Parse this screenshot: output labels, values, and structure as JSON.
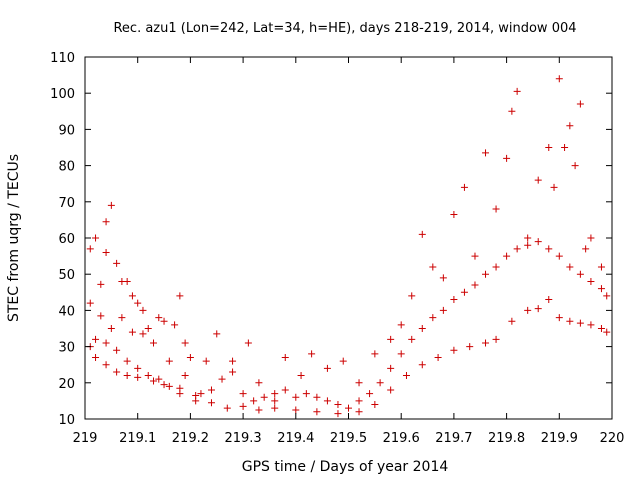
{
  "chart_data": {
    "type": "scatter",
    "title": "Rec. azu1 (Lon=242, Lat=34, h=HE), days 218-219, 2014, window 004",
    "xlabel": "GPS time / Days of year 2014",
    "ylabel": "STEC from uqrg / TECUs",
    "xlim": [
      219,
      220
    ],
    "ylim": [
      10,
      110
    ],
    "x_ticks": [
      "219",
      "219.1",
      "219.2",
      "219.3",
      "219.4",
      "219.5",
      "219.6",
      "219.7",
      "219.8",
      "219.9",
      "220"
    ],
    "y_ticks": [
      "10",
      "20",
      "30",
      "40",
      "50",
      "60",
      "70",
      "80",
      "90",
      "100",
      "110"
    ],
    "grid": false,
    "legend": "none",
    "marker": "+",
    "color": "#cc0000",
    "series": [
      {
        "values": [
          [
            219.01,
            57.0
          ],
          [
            219.03,
            47.2
          ],
          [
            219.04,
            56.0
          ],
          [
            219.06,
            53.0
          ],
          [
            219.08,
            48.0
          ],
          [
            219.1,
            42.0
          ],
          [
            219.12,
            35.0
          ],
          [
            219.15,
            37.0
          ],
          [
            219.18,
            44.0
          ],
          [
            219.2,
            27.0
          ],
          [
            219.01,
            42.0
          ],
          [
            219.03,
            38.5
          ],
          [
            219.05,
            35.0
          ],
          [
            219.07,
            38.0
          ],
          [
            219.09,
            34.0
          ],
          [
            219.11,
            33.5
          ],
          [
            219.13,
            31.0
          ],
          [
            219.16,
            26.0
          ],
          [
            219.19,
            22.0
          ],
          [
            219.22,
            17.0
          ],
          [
            219.01,
            30.0
          ],
          [
            219.02,
            27.0
          ],
          [
            219.04,
            25.0
          ],
          [
            219.06,
            23.0
          ],
          [
            219.08,
            22.0
          ],
          [
            219.1,
            21.5
          ],
          [
            219.13,
            20.5
          ],
          [
            219.15,
            19.5
          ],
          [
            219.18,
            18.5
          ],
          [
            219.21,
            16.5
          ],
          [
            219.24,
            14.5
          ],
          [
            219.27,
            13.0
          ],
          [
            219.3,
            13.5
          ],
          [
            219.33,
            12.5
          ],
          [
            219.36,
            13.0
          ],
          [
            219.4,
            12.5
          ],
          [
            219.44,
            12.0
          ],
          [
            219.48,
            11.5
          ],
          [
            219.52,
            12.0
          ],
          [
            219.55,
            14.0
          ],
          [
            219.58,
            18.0
          ],
          [
            219.61,
            22.0
          ],
          [
            219.64,
            25.0
          ],
          [
            219.67,
            27.0
          ],
          [
            219.7,
            29.0
          ],
          [
            219.73,
            30.0
          ],
          [
            219.76,
            31.0
          ],
          [
            219.78,
            32.0
          ],
          [
            219.81,
            37.0
          ],
          [
            219.84,
            40.0
          ],
          [
            219.86,
            40.5
          ],
          [
            219.88,
            43.0
          ],
          [
            219.9,
            38.0
          ],
          [
            219.92,
            37.0
          ],
          [
            219.94,
            36.5
          ],
          [
            219.96,
            36.0
          ],
          [
            219.98,
            35.0
          ],
          [
            219.99,
            34.0
          ],
          [
            219.02,
            60.0
          ],
          [
            219.04,
            64.5
          ],
          [
            219.05,
            69.0
          ],
          [
            219.07,
            48.0
          ],
          [
            219.09,
            44.0
          ],
          [
            219.11,
            40.0
          ],
          [
            219.14,
            38.0
          ],
          [
            219.17,
            36.0
          ],
          [
            219.19,
            31.0
          ],
          [
            219.23,
            26.0
          ],
          [
            219.25,
            33.5
          ],
          [
            219.28,
            26.0
          ],
          [
            219.31,
            31.0
          ],
          [
            219.33,
            20.0
          ],
          [
            219.36,
            17.0
          ],
          [
            219.38,
            27.0
          ],
          [
            219.41,
            22.0
          ],
          [
            219.43,
            28.0
          ],
          [
            219.46,
            24.0
          ],
          [
            219.49,
            26.0
          ],
          [
            219.52,
            20.0
          ],
          [
            219.55,
            28.0
          ],
          [
            219.58,
            32.0
          ],
          [
            219.6,
            36.0
          ],
          [
            219.62,
            44.0
          ],
          [
            219.64,
            61.0
          ],
          [
            219.66,
            52.0
          ],
          [
            219.68,
            49.0
          ],
          [
            219.7,
            66.5
          ],
          [
            219.72,
            74.0
          ],
          [
            219.74,
            55.0
          ],
          [
            219.76,
            83.5
          ],
          [
            219.78,
            68.0
          ],
          [
            219.8,
            82.0
          ],
          [
            219.81,
            95.0
          ],
          [
            219.82,
            100.5
          ],
          [
            219.84,
            60.0
          ],
          [
            219.86,
            76.0
          ],
          [
            219.88,
            85.0
          ],
          [
            219.89,
            74.0
          ],
          [
            219.9,
            104.0
          ],
          [
            219.91,
            85.0
          ],
          [
            219.92,
            91.0
          ],
          [
            219.93,
            80.0
          ],
          [
            219.94,
            97.0
          ],
          [
            219.95,
            57.0
          ],
          [
            219.96,
            60.0
          ],
          [
            219.98,
            52.0
          ],
          [
            219.99,
            44.0
          ],
          [
            219.02,
            32.0
          ],
          [
            219.04,
            31.0
          ],
          [
            219.06,
            29.0
          ],
          [
            219.08,
            26.0
          ],
          [
            219.1,
            24.0
          ],
          [
            219.12,
            22.0
          ],
          [
            219.14,
            21.0
          ],
          [
            219.16,
            19.0
          ],
          [
            219.18,
            17.0
          ],
          [
            219.21,
            15.0
          ],
          [
            219.24,
            18.0
          ],
          [
            219.26,
            21.0
          ],
          [
            219.28,
            23.0
          ],
          [
            219.3,
            17.0
          ],
          [
            219.32,
            15.0
          ],
          [
            219.34,
            16.0
          ],
          [
            219.36,
            15.0
          ],
          [
            219.38,
            18.0
          ],
          [
            219.4,
            16.0
          ],
          [
            219.42,
            17.0
          ],
          [
            219.44,
            16.0
          ],
          [
            219.46,
            15.0
          ],
          [
            219.48,
            14.0
          ],
          [
            219.5,
            13.0
          ],
          [
            219.52,
            15.0
          ],
          [
            219.54,
            17.0
          ],
          [
            219.56,
            20.0
          ],
          [
            219.58,
            24.0
          ],
          [
            219.6,
            28.0
          ],
          [
            219.62,
            32.0
          ],
          [
            219.64,
            35.0
          ],
          [
            219.66,
            38.0
          ],
          [
            219.68,
            40.0
          ],
          [
            219.7,
            43.0
          ],
          [
            219.72,
            45.0
          ],
          [
            219.74,
            47.0
          ],
          [
            219.76,
            50.0
          ],
          [
            219.78,
            52.0
          ],
          [
            219.8,
            55.0
          ],
          [
            219.82,
            57.0
          ],
          [
            219.84,
            58.0
          ],
          [
            219.86,
            59.0
          ],
          [
            219.88,
            57.0
          ],
          [
            219.9,
            55.0
          ],
          [
            219.92,
            52.0
          ],
          [
            219.94,
            50.0
          ],
          [
            219.96,
            48.0
          ],
          [
            219.98,
            46.0
          ]
        ]
      }
    ]
  }
}
